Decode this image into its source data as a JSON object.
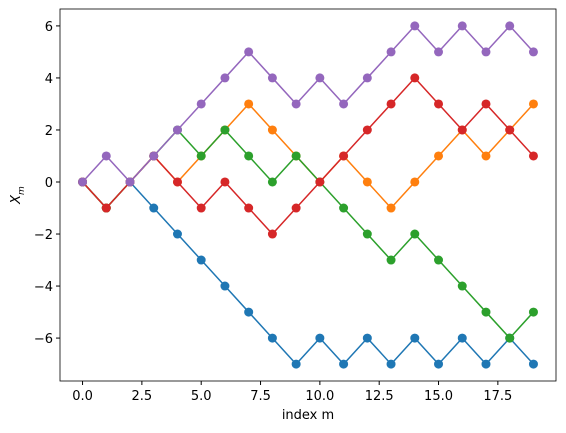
{
  "chart_data": {
    "type": "line",
    "xlabel": "index m",
    "ylabel": {
      "main": "X",
      "sub": "m"
    },
    "x": [
      0,
      1,
      2,
      3,
      4,
      5,
      6,
      7,
      8,
      9,
      10,
      11,
      12,
      13,
      14,
      15,
      16,
      17,
      18,
      19
    ],
    "series": [
      {
        "color": "#1f77b4",
        "values": [
          0,
          -1,
          0,
          -1,
          -2,
          -3,
          -4,
          -5,
          -6,
          -7,
          -6,
          -7,
          -6,
          -7,
          -6,
          -7,
          -6,
          -7,
          -6,
          -7
        ]
      },
      {
        "color": "#ff7f0e",
        "values": [
          0,
          -1,
          0,
          1,
          0,
          1,
          2,
          3,
          2,
          1,
          0,
          1,
          0,
          -1,
          0,
          1,
          2,
          1,
          2,
          3
        ]
      },
      {
        "color": "#2ca02c",
        "values": [
          0,
          -1,
          0,
          1,
          2,
          1,
          2,
          1,
          0,
          1,
          0,
          -1,
          -2,
          -3,
          -2,
          -3,
          -4,
          -5,
          -6,
          -5
        ]
      },
      {
        "color": "#d62728",
        "values": [
          0,
          -1,
          0,
          1,
          0,
          -1,
          0,
          -1,
          -2,
          -1,
          0,
          1,
          2,
          3,
          4,
          3,
          2,
          3,
          2,
          1
        ]
      },
      {
        "color": "#9467bd",
        "values": [
          0,
          1,
          0,
          1,
          2,
          3,
          4,
          5,
          4,
          3,
          4,
          3,
          4,
          5,
          6,
          5,
          6,
          5,
          6,
          5
        ]
      }
    ],
    "xlim": [
      -0.95,
      19.95
    ],
    "ylim": [
      -7.65,
      6.65
    ],
    "xticks": [
      {
        "value": 0,
        "label": "0.0"
      },
      {
        "value": 2.5,
        "label": "2.5"
      },
      {
        "value": 5,
        "label": "5.0"
      },
      {
        "value": 7.5,
        "label": "7.5"
      },
      {
        "value": 10,
        "label": "10.0"
      },
      {
        "value": 12.5,
        "label": "12.5"
      },
      {
        "value": 15,
        "label": "15.0"
      },
      {
        "value": 17.5,
        "label": "17.5"
      }
    ],
    "yticks": [
      {
        "value": -6,
        "label": "−6"
      },
      {
        "value": -4,
        "label": "−4"
      },
      {
        "value": -2,
        "label": "−2"
      },
      0,
      2,
      4,
      6
    ],
    "grid": false
  }
}
